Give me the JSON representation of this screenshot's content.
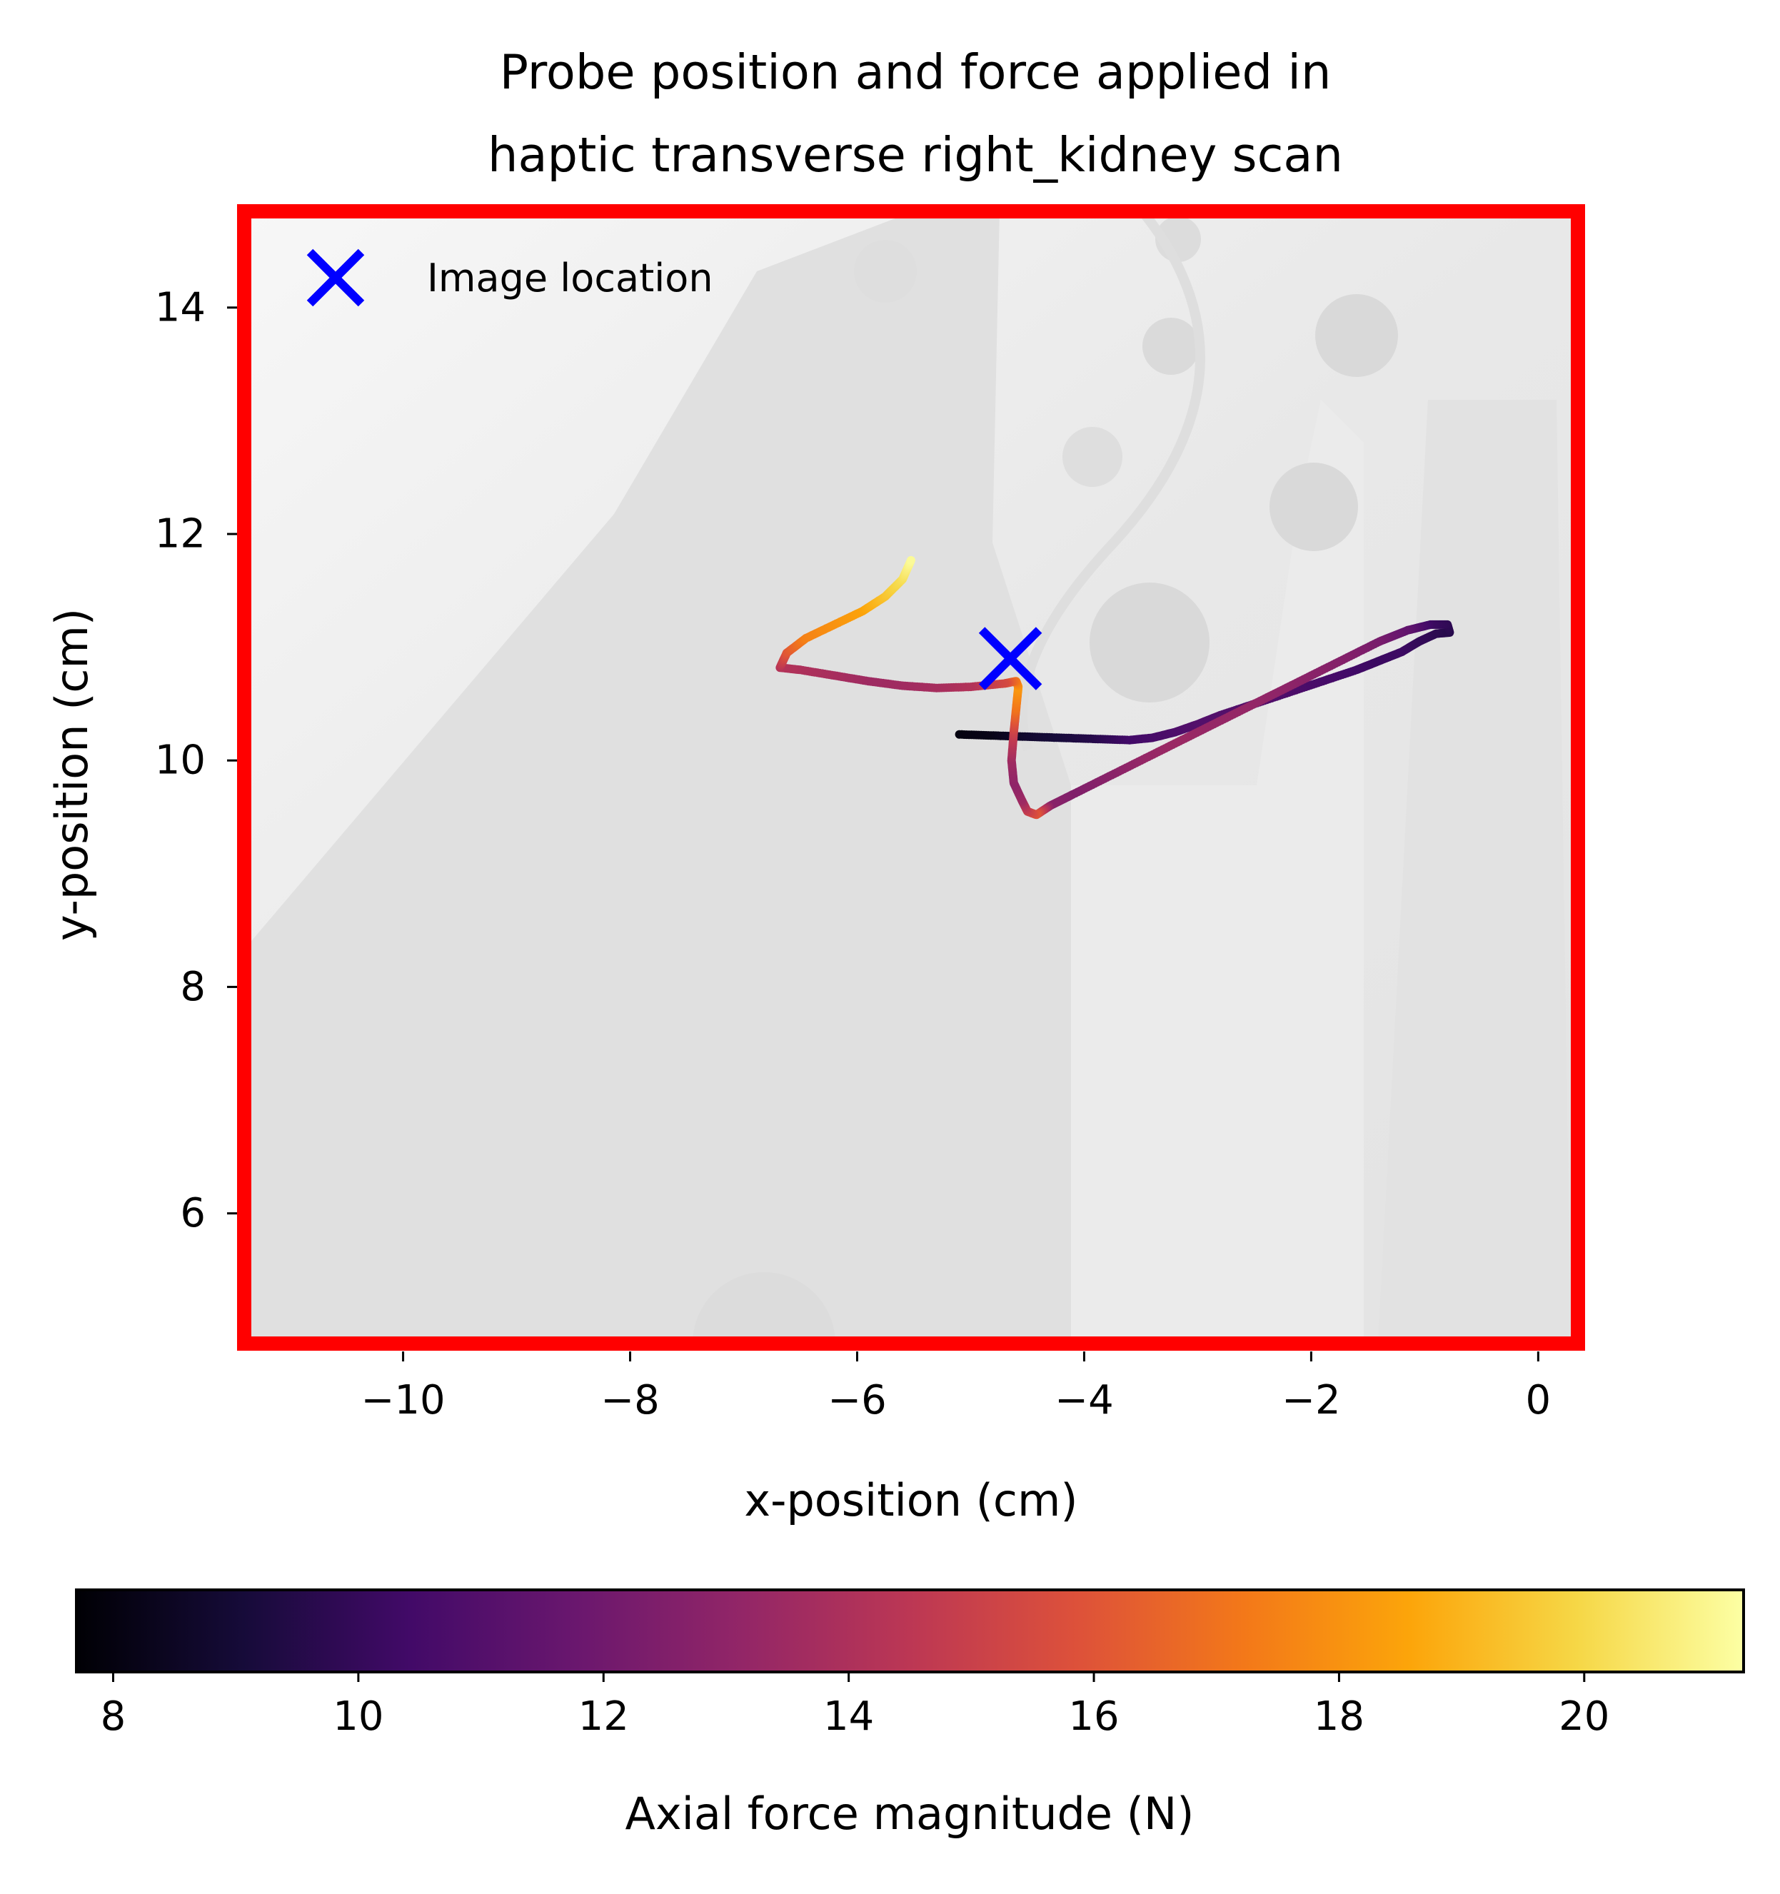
{
  "chart_data": {
    "type": "scatter",
    "title_lines": [
      "Probe position and force applied in",
      "haptic transverse right_kidney scan"
    ],
    "xlabel": "x-position (cm)",
    "ylabel": "y-position (cm)",
    "xlim": [
      -11.4,
      0.35
    ],
    "ylim": [
      4.85,
      14.85
    ],
    "xticks": [
      -10,
      -8,
      -6,
      -4,
      -2,
      0
    ],
    "xtick_labels": [
      "−10",
      "−8",
      "−6",
      "−4",
      "−2",
      "0"
    ],
    "yticks": [
      6,
      8,
      10,
      12,
      14
    ],
    "ytick_labels": [
      "6",
      "8",
      "10",
      "12",
      "14"
    ],
    "legend": {
      "label": "Image location",
      "position": "top-left"
    },
    "image_location": {
      "x": -4.65,
      "y": 10.9
    },
    "trajectory": {
      "x": [
        -5.1,
        -4.8,
        -4.5,
        -4.2,
        -3.9,
        -3.6,
        -3.4,
        -3.2,
        -3.0,
        -2.8,
        -2.5,
        -2.2,
        -1.9,
        -1.6,
        -1.4,
        -1.2,
        -1.05,
        -0.9,
        -0.78,
        -0.8,
        -0.95,
        -1.15,
        -1.4,
        -1.7,
        -2.0,
        -2.3,
        -2.6,
        -2.9,
        -3.2,
        -3.5,
        -3.8,
        -4.1,
        -4.3,
        -4.42,
        -4.5,
        -4.55,
        -4.62,
        -4.64,
        -4.62,
        -4.6,
        -4.58,
        -4.6,
        -4.7,
        -5.0,
        -5.3,
        -5.6,
        -5.9,
        -6.2,
        -6.5,
        -6.68,
        -6.62,
        -6.45,
        -6.2,
        -5.95,
        -5.75,
        -5.6,
        -5.52
      ],
      "y": [
        10.23,
        10.22,
        10.21,
        10.2,
        10.19,
        10.18,
        10.2,
        10.25,
        10.32,
        10.4,
        10.5,
        10.6,
        10.7,
        10.8,
        10.88,
        10.96,
        11.05,
        11.12,
        11.13,
        11.2,
        11.2,
        11.15,
        11.05,
        10.9,
        10.75,
        10.6,
        10.45,
        10.3,
        10.15,
        10.0,
        9.85,
        9.7,
        9.6,
        9.52,
        9.55,
        9.65,
        9.8,
        10.0,
        10.25,
        10.45,
        10.65,
        10.7,
        10.68,
        10.65,
        10.64,
        10.66,
        10.7,
        10.75,
        10.8,
        10.82,
        10.95,
        11.08,
        11.2,
        11.32,
        11.45,
        11.6,
        11.78
      ],
      "force": [
        8.0,
        8.2,
        8.8,
        9.1,
        9.6,
        10.4,
        10.6,
        10.8,
        11.0,
        11.0,
        11.0,
        10.8,
        10.6,
        10.4,
        10.2,
        10.3,
        10.0,
        9.8,
        9.6,
        9.8,
        10.2,
        11.4,
        12.2,
        12.6,
        12.8,
        13.0,
        13.2,
        13.2,
        13.4,
        13.2,
        12.8,
        12.5,
        12.8,
        16.0,
        15.0,
        13.5,
        13.0,
        13.5,
        15.0,
        17.0,
        18.2,
        17.2,
        15.5,
        14.2,
        13.8,
        13.6,
        13.5,
        13.8,
        14.0,
        14.2,
        16.0,
        17.5,
        18.0,
        18.5,
        19.4,
        20.2,
        21.2
      ]
    },
    "colorbar": {
      "label": "Axial force magnitude (N)",
      "colormap": "inferno",
      "range": [
        7.7,
        21.3
      ],
      "ticks": [
        8,
        10,
        12,
        14,
        16,
        18,
        20
      ],
      "tick_labels": [
        "8",
        "10",
        "12",
        "14",
        "16",
        "18",
        "20"
      ]
    },
    "colors": {
      "frame": "#ff0000",
      "marker": "#0000ff",
      "background_image": "#ececec"
    }
  }
}
